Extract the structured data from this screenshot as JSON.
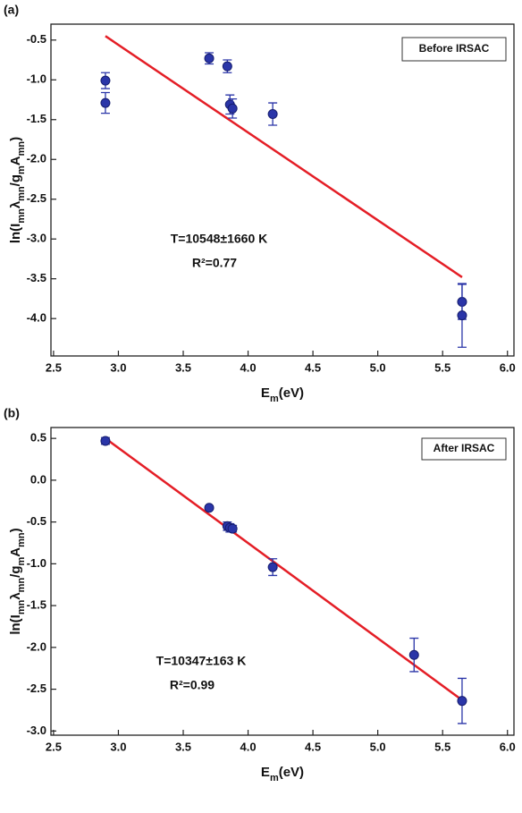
{
  "chart_data": [
    {
      "type": "scatter",
      "panel_label": "(a)",
      "legend_text": "Before IRSAC",
      "annotations": [
        "T=10548±1660 K",
        "R²=0.77"
      ],
      "x_label": [
        "E",
        "m",
        "(eV)"
      ],
      "y_label": [
        "ln(I",
        "mn",
        "λ",
        "mn",
        "/g",
        "m",
        "A",
        "mn",
        ")"
      ],
      "xlim": [
        2.48,
        6.05
      ],
      "xticks": [
        2.5,
        {
          "value": 3,
          "label": "3.0"
        },
        3.5,
        {
          "value": 4,
          "label": "4.0"
        },
        4.5,
        {
          "value": 5,
          "label": "5.0"
        },
        5.5,
        {
          "value": 6,
          "label": "6.0"
        }
      ],
      "ylim": [
        -4.47,
        -0.3
      ],
      "yticks": [
        -0.5,
        {
          "value": -1,
          "label": "-1.0"
        },
        -1.5,
        {
          "value": -2,
          "label": "-2.0"
        },
        -2.5,
        {
          "value": -3,
          "label": "-3.0"
        },
        -3.5,
        {
          "value": -4,
          "label": "-4.0"
        }
      ],
      "color": "#2a35a8",
      "x": [
        2.9,
        2.9,
        3.7,
        3.84,
        3.86,
        3.88,
        4.19,
        5.65,
        5.65
      ],
      "values": [
        -1.01,
        -1.29,
        -0.73,
        -0.83,
        -1.31,
        -1.36,
        -1.43,
        -3.79,
        -3.96
      ],
      "errors": [
        0.1,
        0.13,
        0.07,
        0.08,
        0.12,
        0.12,
        0.14,
        0.22,
        0.4
      ],
      "fit": {
        "color": "#e41e26",
        "x": [
          2.9,
          5.65
        ],
        "y": [
          -0.45,
          -3.48
        ]
      }
    },
    {
      "type": "scatter",
      "panel_label": "(b)",
      "legend_text": "After IRSAC",
      "annotations": [
        "T=10347±163 K",
        "R²=0.99"
      ],
      "x_label": [
        "E",
        "m",
        "(eV)"
      ],
      "y_label": [
        "ln(I",
        "mn",
        "λ",
        "mn",
        "/g",
        "m",
        "A",
        "mn",
        ")"
      ],
      "xlim": [
        2.48,
        6.05
      ],
      "xticks": [
        2.5,
        {
          "value": 3,
          "label": "3.0"
        },
        3.5,
        {
          "value": 4,
          "label": "4.0"
        },
        4.5,
        {
          "value": 5,
          "label": "5.0"
        },
        5.5,
        {
          "value": 6,
          "label": "6.0"
        }
      ],
      "ylim": [
        -3.05,
        0.63
      ],
      "yticks": [
        0.5,
        {
          "value": 0,
          "label": "0.0"
        },
        -0.5,
        {
          "value": -1,
          "label": "-1.0"
        },
        -1.5,
        {
          "value": -2,
          "label": "-2.0"
        },
        -2.5,
        {
          "value": -3,
          "label": "-3.0"
        }
      ],
      "color": "#2a35a8",
      "x": [
        2.9,
        3.7,
        3.84,
        3.86,
        3.88,
        4.19,
        5.28,
        5.65
      ],
      "values": [
        0.47,
        -0.33,
        -0.55,
        -0.57,
        -0.58,
        -1.04,
        -2.09,
        -2.64
      ],
      "errors": [
        0.04,
        0.02,
        0.05,
        0.05,
        0.04,
        0.1,
        0.2,
        0.27
      ],
      "fit": {
        "color": "#e41e26",
        "x": [
          2.9,
          5.65
        ],
        "y": [
          0.5,
          -2.63
        ]
      }
    }
  ]
}
